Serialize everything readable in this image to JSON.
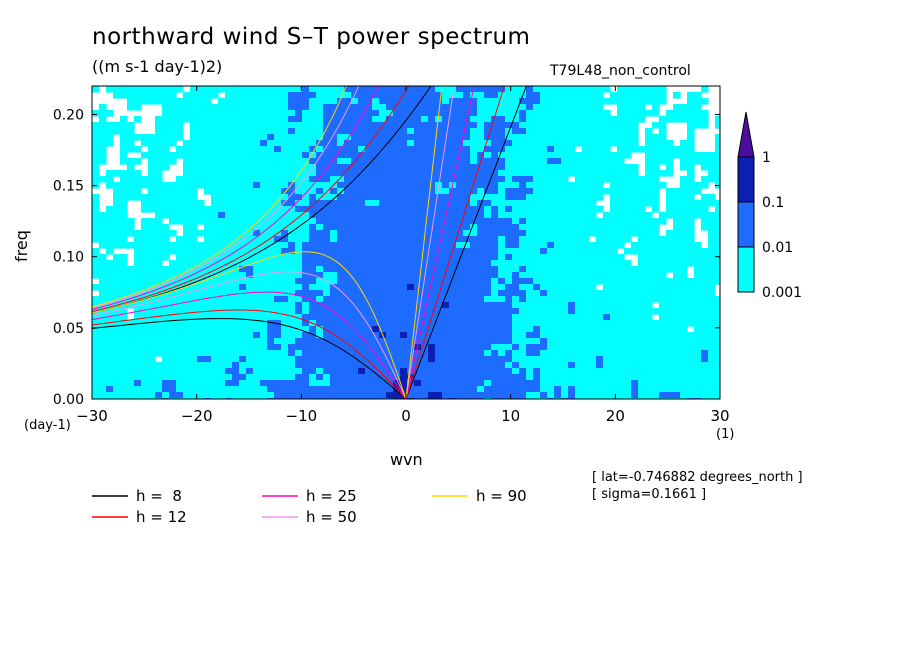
{
  "chart_data": {
    "type": "heatmap",
    "title": "northward wind S–T power spectrum",
    "units": "((m s-1 day-1)2)",
    "run_label": "T79L48_non_control",
    "xlabel": "wvn",
    "ylabel": "freq",
    "x_unit": "(1)",
    "y_unit": "(day-1)",
    "xlim": [
      -30,
      30
    ],
    "ylim": [
      0,
      0.22
    ],
    "x_ticks": [
      -30,
      -20,
      -10,
      0,
      10,
      20,
      30
    ],
    "y_ticks": [
      "0.00",
      "0.05",
      "0.10",
      "0.15",
      "0.20"
    ],
    "y_tick_values": [
      0,
      0.05,
      0.1,
      0.15,
      0.2
    ],
    "colorbar": {
      "levels": [
        "0.001",
        "0.01",
        "0.1",
        "1"
      ],
      "level_values": [
        0.001,
        0.01,
        0.1,
        1
      ],
      "colors": [
        "#00ffff",
        "#1e6cff",
        "#0a1fb4",
        "#4a0fa0"
      ]
    },
    "dispersion_curves": [
      {
        "name": "h =  8",
        "h": 8,
        "color": "#000000"
      },
      {
        "name": "h = 12",
        "h": 12,
        "color": "#ff0000"
      },
      {
        "name": "h = 25",
        "h": 25,
        "color": "#ff00c8"
      },
      {
        "name": "h = 50",
        "h": 50,
        "color": "#ee9ae8"
      },
      {
        "name": "h = 90",
        "h": 90,
        "color": "#ffd700"
      }
    ],
    "annotations": [
      "[ lat=-0.746882 degrees_north ]",
      "[ sigma=0.1661 ]"
    ]
  }
}
